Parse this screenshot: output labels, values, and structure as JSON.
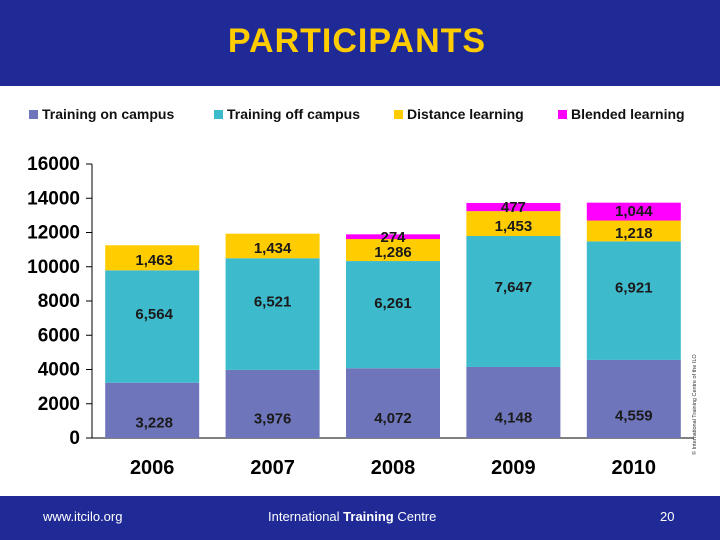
{
  "slide": {
    "title": "PARTICIPANTS",
    "footer_url": "www.itcilo.org",
    "footer_centre_pre": "International ",
    "footer_centre_bold": "Training",
    "footer_centre_post": " Centre",
    "page_number": "20",
    "copyright": "© International Training Centre of the ILO"
  },
  "colors": {
    "header_bg": "#1f2a96",
    "title": "#ffcc00",
    "training_on_campus": "#6f75bb",
    "training_off_campus": "#3ebacd",
    "distance_learning": "#ffcc00",
    "blended_learning": "#ff00ff"
  },
  "chart_data": {
    "type": "bar",
    "stacked": true,
    "categories": [
      "2006",
      "2007",
      "2008",
      "2009",
      "2010"
    ],
    "series": [
      {
        "name": "Training on campus",
        "values": [
          3228,
          3976,
          4072,
          4148,
          4559
        ],
        "labels": [
          "3,228",
          "3,976",
          "4,072",
          "4,148",
          "4,559"
        ]
      },
      {
        "name": "Training off campus",
        "values": [
          6564,
          6521,
          6261,
          7647,
          6921
        ],
        "labels": [
          "6,564",
          "6,521",
          "6,261",
          "7,647",
          "6,921"
        ]
      },
      {
        "name": "Distance learning",
        "values": [
          1463,
          1434,
          1286,
          1453,
          1218
        ],
        "labels": [
          "1,463",
          "1,434",
          "1,286",
          "1,453",
          "1,218"
        ]
      },
      {
        "name": "Blended learning",
        "values": [
          0,
          0,
          274,
          477,
          1044
        ],
        "labels": [
          "",
          "",
          "274",
          "477",
          "1,044"
        ]
      }
    ],
    "ylim": [
      0,
      16000
    ],
    "yticks": [
      "0",
      "2000",
      "4000",
      "6000",
      "8000",
      "10000",
      "12000",
      "14000",
      "16000"
    ],
    "legend_position": "top",
    "grid": false
  }
}
